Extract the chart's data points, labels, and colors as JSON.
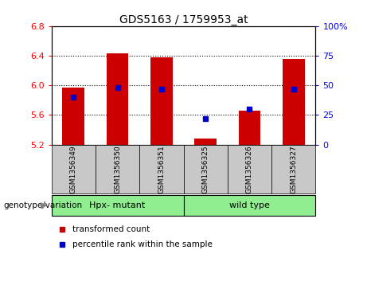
{
  "title": "GDS5163 / 1759953_at",
  "samples": [
    "GSM1356349",
    "GSM1356350",
    "GSM1356351",
    "GSM1356325",
    "GSM1356326",
    "GSM1356327"
  ],
  "red_values": [
    5.97,
    6.43,
    6.38,
    5.28,
    5.66,
    6.36
  ],
  "blue_values": [
    40,
    48,
    47,
    22,
    30,
    47
  ],
  "ylim_left": [
    5.2,
    6.8
  ],
  "ylim_right": [
    0,
    100
  ],
  "yticks_left": [
    5.2,
    5.6,
    6.0,
    6.4,
    6.8
  ],
  "yticks_right": [
    0,
    25,
    50,
    75,
    100
  ],
  "groups": [
    {
      "label": "Hpx- mutant",
      "indices": [
        0,
        1,
        2
      ],
      "color": "#90EE90"
    },
    {
      "label": "wild type",
      "indices": [
        3,
        4,
        5
      ],
      "color": "#90EE90"
    }
  ],
  "group_label": "genotype/variation",
  "bar_color": "#CC0000",
  "dot_color": "#0000CC",
  "bg_color": "#C8C8C8",
  "plot_bg": "#FFFFFF",
  "legend_red": "transformed count",
  "legend_blue": "percentile rank within the sample",
  "base_value": 5.2,
  "bar_width": 0.5
}
